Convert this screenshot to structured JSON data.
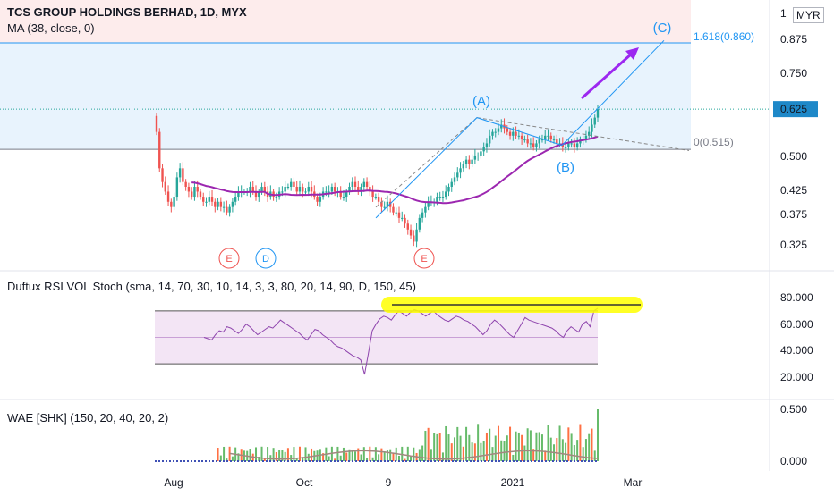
{
  "header": {
    "title": "TCS GROUP HOLDINGS BERHAD, 1D, MYX",
    "ma_label": "MA (38, close, 0)",
    "currency": "MYR"
  },
  "panes": {
    "rsi_label": "Duftux RSI VOL Stoch (sma, 14, 70, 30, 10, 14, 3, 3, 80, 20, 14, 90, D, 150, 45)",
    "wae_label": "WAE [SHK] (150, 20, 40, 20, 2)"
  },
  "colors": {
    "up": "#26a69a",
    "down": "#ef5350",
    "ma": "#9c27b0",
    "rsi": "#8e44ad",
    "fib": "#2196f3",
    "price_badge": "#1e88c8",
    "highlight": "#ffff00"
  },
  "annotations": {
    "wave_a": "(A)",
    "wave_b": "(B)",
    "wave_c": "(C)",
    "fib_top": "1.618(0.860)",
    "fib_zero": "0(0.515)",
    "current_price": "0.625",
    "events": [
      "E",
      "D",
      "E"
    ]
  },
  "chart_data": [
    {
      "type": "candlestick",
      "title": "TCS GROUP HOLDINGS BERHAD, 1D, MYX",
      "y_ticks": [
        "1",
        "0.875",
        "0.750",
        "0.625",
        "0.500",
        "0.425",
        "0.375",
        "0.325"
      ],
      "y_scale": "log",
      "ylim": [
        0.3,
        1.0
      ],
      "x_ticks": [
        "Aug",
        "Oct",
        "9",
        "2021",
        "Mar"
      ],
      "last_price": 0.625,
      "fib_levels": [
        {
          "label": "1.618(0.860)",
          "value": 0.86
        },
        {
          "label": "0(0.515)",
          "value": 0.515
        }
      ],
      "ma_period": 38,
      "approx_closes": [
        0.56,
        0.47,
        0.44,
        0.42,
        0.4,
        0.39,
        0.41,
        0.45,
        0.47,
        0.44,
        0.43,
        0.42,
        0.41,
        0.43,
        0.42,
        0.41,
        0.4,
        0.4,
        0.41,
        0.4,
        0.39,
        0.4,
        0.39,
        0.39,
        0.38,
        0.39,
        0.4,
        0.41,
        0.42,
        0.42,
        0.42,
        0.42,
        0.43,
        0.42,
        0.41,
        0.42,
        0.43,
        0.42,
        0.41,
        0.42,
        0.41,
        0.41,
        0.42,
        0.42,
        0.43,
        0.43,
        0.44,
        0.43,
        0.42,
        0.43,
        0.42,
        0.42,
        0.43,
        0.42,
        0.41,
        0.4,
        0.41,
        0.42,
        0.42,
        0.42,
        0.43,
        0.42,
        0.42,
        0.41,
        0.41,
        0.42,
        0.43,
        0.44,
        0.43,
        0.42,
        0.43,
        0.44,
        0.43,
        0.42,
        0.41,
        0.41,
        0.4,
        0.39,
        0.39,
        0.4,
        0.39,
        0.38,
        0.38,
        0.37,
        0.37,
        0.36,
        0.35,
        0.34,
        0.33,
        0.35,
        0.37,
        0.38,
        0.39,
        0.4,
        0.4,
        0.4,
        0.41,
        0.41,
        0.41,
        0.42,
        0.43,
        0.44,
        0.45,
        0.46,
        0.47,
        0.48,
        0.49,
        0.48,
        0.49,
        0.5,
        0.5,
        0.51,
        0.52,
        0.53,
        0.55,
        0.56,
        0.56,
        0.57,
        0.58,
        0.57,
        0.56,
        0.55,
        0.56,
        0.55,
        0.55,
        0.54,
        0.54,
        0.53,
        0.53,
        0.52,
        0.53,
        0.54,
        0.54,
        0.55,
        0.55,
        0.54,
        0.54,
        0.53,
        0.53,
        0.52,
        0.52,
        0.53,
        0.53,
        0.52,
        0.53,
        0.54,
        0.54,
        0.55,
        0.56,
        0.58,
        0.6,
        0.625
      ]
    },
    {
      "type": "line",
      "title": "Duftux RSI VOL Stoch (sma, 14, 70, 30, 10, 14, 3, 3, 80, 20, 14, 90, D, 150, 45)",
      "y_ticks": [
        "80.000",
        "60.000",
        "40.000",
        "20.000"
      ],
      "ylim": [
        15,
        85
      ],
      "bands": {
        "upper": 70,
        "lower": 30
      },
      "approx_values": [
        50,
        49,
        48,
        52,
        55,
        54,
        58,
        57,
        55,
        53,
        56,
        60,
        58,
        55,
        52,
        54,
        56,
        58,
        57,
        60,
        63,
        61,
        59,
        57,
        55,
        53,
        50,
        48,
        52,
        56,
        55,
        52,
        50,
        48,
        45,
        43,
        42,
        40,
        38,
        36,
        35,
        33,
        22,
        38,
        55,
        60,
        64,
        66,
        65,
        63,
        67,
        70,
        68,
        66,
        69,
        71,
        70,
        68,
        66,
        68,
        70,
        67,
        65,
        63,
        62,
        64,
        66,
        65,
        63,
        62,
        60,
        58,
        55,
        52,
        55,
        60,
        63,
        61,
        58,
        55,
        52,
        50,
        55,
        60,
        65,
        63,
        62,
        61,
        60,
        59,
        58,
        57,
        55,
        52,
        50,
        55,
        58,
        56,
        54,
        60,
        62,
        58,
        70,
        72
      ]
    },
    {
      "type": "bar",
      "title": "WAE [SHK] (150, 20, 40, 20, 2)",
      "y_ticks": [
        "0.500",
        "0.000"
      ],
      "ylim": [
        0,
        0.55
      ]
    }
  ]
}
